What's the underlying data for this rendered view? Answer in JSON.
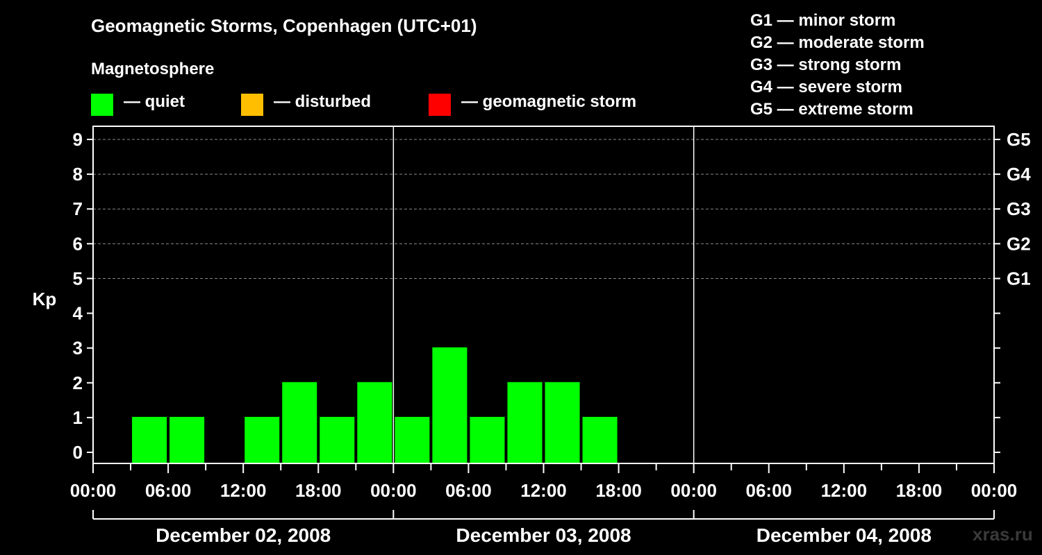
{
  "header": {
    "title": "Geomagnetic Storms, Copenhagen (UTC+01)",
    "subtitle": "Magnetosphere"
  },
  "legend": [
    {
      "label": "— quiet",
      "color": "#00ff00"
    },
    {
      "label": "— disturbed",
      "color": "#ffbf00"
    },
    {
      "label": "— geomagnetic storm",
      "color": "#ff0000"
    }
  ],
  "g_scale_legend": [
    "G1 — minor storm",
    "G2 — moderate storm",
    "G3 — strong storm",
    "G4 — severe storm",
    "G5 — extreme storm"
  ],
  "watermark": "xras.ru",
  "chart_data": {
    "type": "bar",
    "ylabel": "Kp",
    "ylim": [
      0,
      9
    ],
    "yticks": [
      "0",
      "1",
      "2",
      "3",
      "4",
      "5",
      "6",
      "7",
      "8",
      "9"
    ],
    "right_labels": [
      {
        "kp": 5,
        "label": "G1"
      },
      {
        "kp": 6,
        "label": "G2"
      },
      {
        "kp": 7,
        "label": "G3"
      },
      {
        "kp": 8,
        "label": "G4"
      },
      {
        "kp": 9,
        "label": "G5"
      }
    ],
    "grid_levels": [
      5,
      6,
      7,
      8,
      9
    ],
    "x_hours_range": [
      0,
      72
    ],
    "xtick_labels": [
      "00:00",
      "06:00",
      "12:00",
      "18:00",
      "00:00",
      "06:00",
      "12:00",
      "18:00",
      "00:00",
      "06:00",
      "12:00",
      "18:00",
      "00:00"
    ],
    "xtick_hours": [
      0,
      6,
      12,
      18,
      24,
      30,
      36,
      42,
      48,
      54,
      60,
      66,
      72
    ],
    "day_boundaries_hours": [
      24,
      48
    ],
    "days": [
      "December 02, 2008",
      "December 03, 2008",
      "December 04, 2008"
    ],
    "bar_interval_hours": 3,
    "bars": [
      {
        "start_hour": 3,
        "kp": 1,
        "status": "quiet"
      },
      {
        "start_hour": 6,
        "kp": 1,
        "status": "quiet"
      },
      {
        "start_hour": 12,
        "kp": 1,
        "status": "quiet"
      },
      {
        "start_hour": 15,
        "kp": 2,
        "status": "quiet"
      },
      {
        "start_hour": 18,
        "kp": 1,
        "status": "quiet"
      },
      {
        "start_hour": 21,
        "kp": 2,
        "status": "quiet"
      },
      {
        "start_hour": 24,
        "kp": 1,
        "status": "quiet"
      },
      {
        "start_hour": 27,
        "kp": 3,
        "status": "quiet"
      },
      {
        "start_hour": 30,
        "kp": 1,
        "status": "quiet"
      },
      {
        "start_hour": 33,
        "kp": 2,
        "status": "quiet"
      },
      {
        "start_hour": 36,
        "kp": 2,
        "status": "quiet"
      },
      {
        "start_hour": 39,
        "kp": 1,
        "status": "quiet"
      }
    ],
    "status_colors": {
      "quiet": "#00ff00",
      "disturbed": "#ffbf00",
      "storm": "#ff0000"
    }
  }
}
